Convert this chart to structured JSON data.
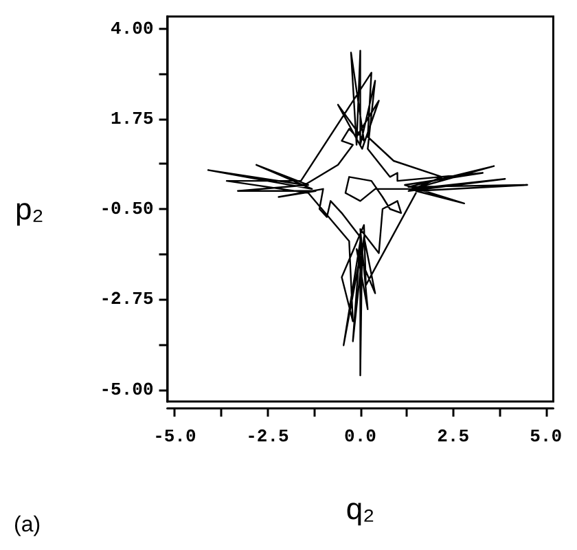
{
  "chart_data": {
    "type": "line",
    "xlabel": "q₂",
    "ylabel": "p₂",
    "annotations": [
      "(a)"
    ],
    "xlim": [
      -5.2,
      5.2
    ],
    "ylim": [
      -5.3,
      4.3
    ],
    "xticks": [
      {
        "value": -5,
        "label": "-5.0"
      },
      {
        "value": -3.75,
        "label": null
      },
      {
        "value": -2.5,
        "label": "-2.5"
      },
      {
        "value": -1.25,
        "label": null
      },
      {
        "value": 0,
        "label": "0.0"
      },
      {
        "value": 1.25,
        "label": null
      },
      {
        "value": 2.5,
        "label": "2.5"
      },
      {
        "value": 3.75,
        "label": null
      },
      {
        "value": 5,
        "label": "5.0"
      }
    ],
    "yticks": [
      {
        "value": -5,
        "label": "-5.00"
      },
      {
        "value": -3.875,
        "label": null
      },
      {
        "value": -2.75,
        "label": "-2.75"
      },
      {
        "value": -1.625,
        "label": null
      },
      {
        "value": -0.5,
        "label": "-0.50"
      },
      {
        "value": 0.625,
        "label": null
      },
      {
        "value": 1.75,
        "label": "1.75"
      },
      {
        "value": 2.875,
        "label": null
      },
      {
        "value": 4,
        "label": "4.00"
      }
    ],
    "marker": "none",
    "line_style": "solid",
    "series": [
      {
        "color": "#000000",
        "x": [
          1.4,
          3.6,
          1.3,
          4.5,
          1.5,
          2.8,
          1.2,
          3.3,
          1.0,
          1.0,
          0.8,
          0.2,
          0.4,
          0.0,
          0.0,
          -0.1,
          -0.25,
          0.1,
          -0.6,
          0.05,
          0.5,
          -0.1,
          -0.3,
          -0.5,
          -0.2,
          -0.6,
          -1.5,
          -4.1,
          -1.3,
          -2.8,
          -1.4,
          -3.3,
          -1.2,
          -2.2,
          -1.0,
          -1.1,
          -0.9,
          -0.8,
          -0.5,
          0.0,
          0.0,
          0.05,
          -0.45,
          0.0,
          -0.2,
          0.1,
          0.4,
          -0.1,
          0.2,
          0.0,
          0.5,
          0.6,
          1.0,
          1.1,
          0.8,
          0.6,
          0.3,
          -0.3,
          -0.4,
          0.0,
          0.4,
          1.4,
          3.9,
          1.3,
          2.2,
          0.9,
          0.2,
          0.3,
          -1.6,
          -3.6,
          -1.4,
          -0.3,
          -0.2,
          -0.5,
          0.1,
          0.15,
          1.5
        ],
        "values": [
          0.0,
          0.57,
          0.05,
          0.1,
          -0.05,
          -0.36,
          0.1,
          0.4,
          0.2,
          0.4,
          0.3,
          1.0,
          2.7,
          1.1,
          3.45,
          1.1,
          3.4,
          1.2,
          2.1,
          1.0,
          2.2,
          1.3,
          1.5,
          1.2,
          1.1,
          0.6,
          0.1,
          0.47,
          0.0,
          0.6,
          0.1,
          -0.05,
          -0.05,
          -0.2,
          0.0,
          -0.5,
          -0.7,
          -0.3,
          -0.6,
          -1.2,
          -4.65,
          -1.4,
          -3.9,
          -1.3,
          -3.8,
          -1.2,
          -2.6,
          -1.5,
          -3.0,
          -1.0,
          -1.6,
          -0.5,
          -0.3,
          -0.6,
          -0.5,
          -0.2,
          0.2,
          0.3,
          -0.1,
          -0.3,
          0.0,
          0.0,
          0.25,
          -0.05,
          0.3,
          0.7,
          1.3,
          2.9,
          0.2,
          0.2,
          -0.1,
          -1.3,
          -3.3,
          -2.2,
          -0.9,
          -2.4,
          -0.1
        ]
      }
    ]
  }
}
